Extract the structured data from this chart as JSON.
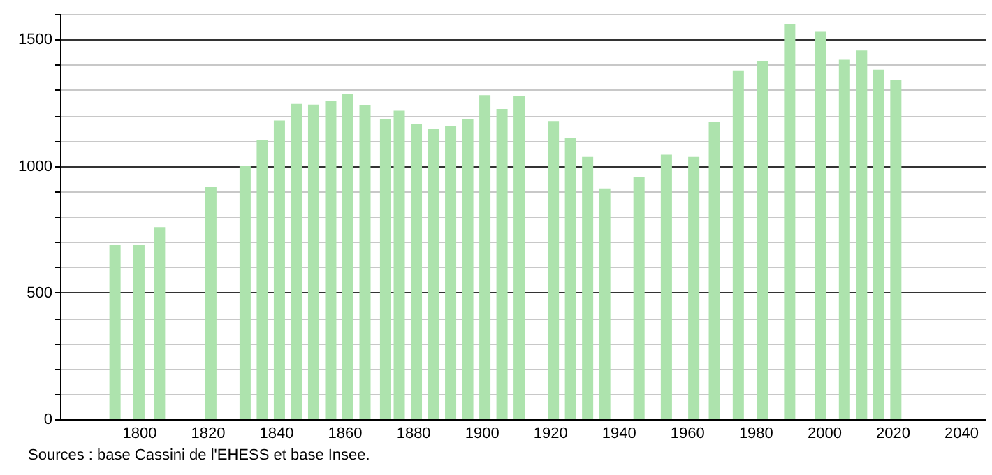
{
  "chart_data": {
    "type": "bar",
    "x": [
      1793,
      1800,
      1806,
      1821,
      1831,
      1836,
      1841,
      1846,
      1851,
      1856,
      1861,
      1866,
      1872,
      1876,
      1881,
      1886,
      1891,
      1896,
      1901,
      1906,
      1911,
      1921,
      1926,
      1931,
      1936,
      1946,
      1954,
      1962,
      1968,
      1975,
      1982,
      1990,
      1999,
      2006,
      2011,
      2016,
      2021
    ],
    "values": [
      687,
      687,
      758,
      918,
      1001,
      1101,
      1179,
      1245,
      1242,
      1258,
      1284,
      1240,
      1186,
      1218,
      1164,
      1146,
      1157,
      1185,
      1279,
      1225,
      1275,
      1177,
      1109,
      1035,
      911,
      955,
      1044,
      1035,
      1173,
      1377,
      1414,
      1561,
      1530,
      1419,
      1456,
      1380,
      1340
    ],
    "color": "#ade3ad",
    "xlim": [
      1779,
      2045
    ],
    "xticks": [
      1800,
      1820,
      1840,
      1860,
      1880,
      1900,
      1920,
      1940,
      1960,
      1980,
      2000,
      2020,
      2040
    ],
    "ylim": [
      0,
      1600
    ],
    "yticks": [
      0,
      {
        "value": 100,
        "label": null
      },
      {
        "value": 200,
        "label": null
      },
      {
        "value": 300,
        "label": null
      },
      {
        "value": 400,
        "label": null
      },
      500,
      {
        "value": 600,
        "label": null
      },
      {
        "value": 700,
        "label": null
      },
      {
        "value": 800,
        "label": null
      },
      {
        "value": 900,
        "label": null
      },
      1000,
      {
        "value": 1100,
        "label": null
      },
      {
        "value": 1200,
        "label": null
      },
      {
        "value": 1300,
        "label": null
      },
      {
        "value": 1400,
        "label": null
      },
      1500,
      {
        "value": 1600,
        "label": null
      }
    ],
    "grid": "y",
    "annotations": [
      "Sources : base Cassini de l'EHESS et base Insee."
    ]
  }
}
